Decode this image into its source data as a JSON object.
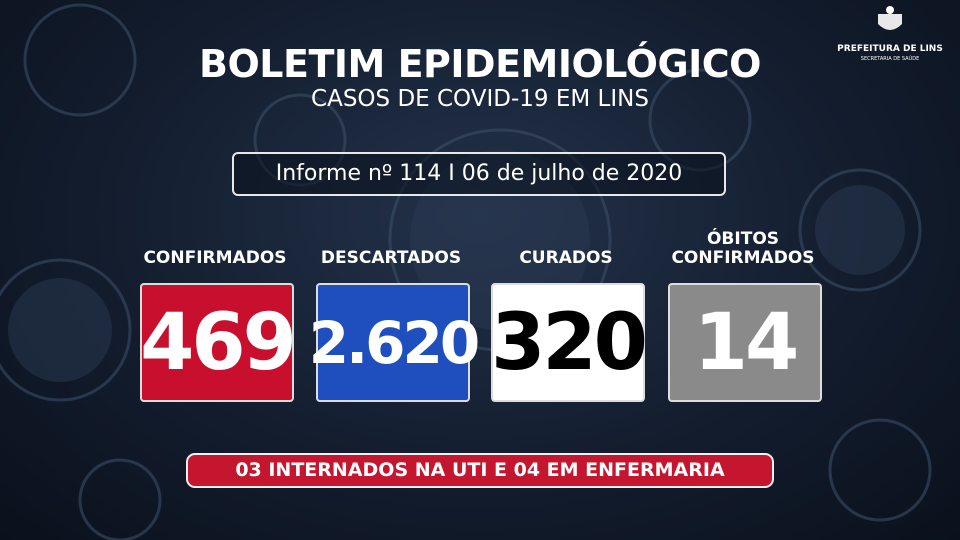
{
  "logo": {
    "name": "PREFEITURA DE LINS",
    "department": "SECRETARIA DE SAÚDE"
  },
  "header": {
    "title": "BOLETIM EPIDEMIOLÓGICO",
    "subtitle": "CASOS DE COVID-19 EM LINS"
  },
  "report": "Informe nº 114 I 06 de julho de 2020",
  "cards": [
    {
      "label": "CONFIRMADOS",
      "value": "469"
    },
    {
      "label": "DESCARTADOS",
      "value": "2.620"
    },
    {
      "label": "CURADOS",
      "value": "320"
    },
    {
      "label": "ÓBITOS CONFIRMADOS",
      "value": "14"
    }
  ],
  "footer": "03 INTERNADOS NA UTI E 04 EM ENFERMARIA"
}
